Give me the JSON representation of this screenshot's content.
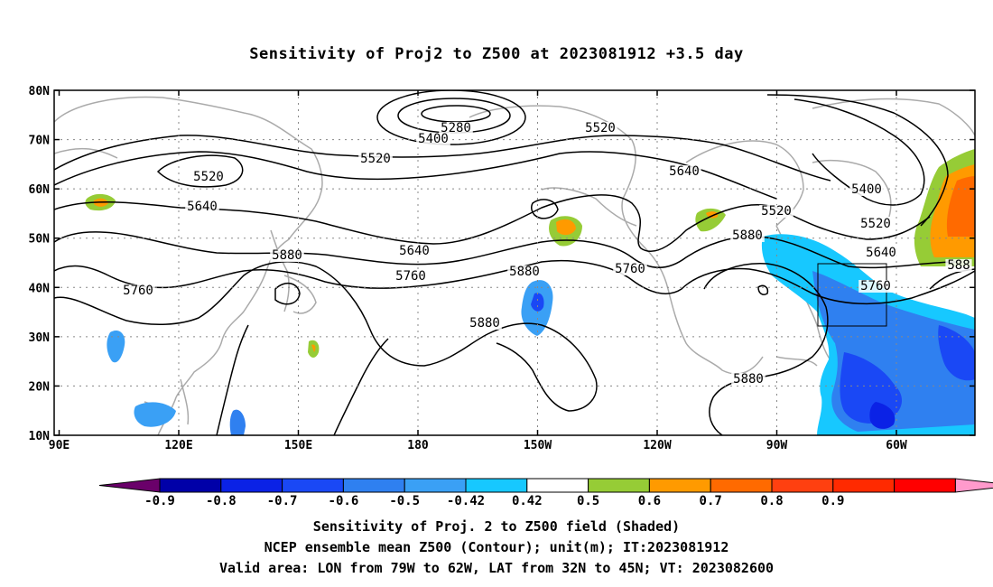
{
  "title": "Sensitivity of Proj2 to Z500 at 2023081912 +3.5 day",
  "lat_labels": [
    "80N",
    "70N",
    "60N",
    "50N",
    "40N",
    "30N",
    "20N",
    "10N"
  ],
  "lon_labels": [
    "90E",
    "120E",
    "150E",
    "180",
    "150W",
    "120W",
    "90W",
    "60W"
  ],
  "contour_labels": [
    {
      "text": "5280"
    },
    {
      "text": "5400"
    },
    {
      "text": "5520"
    },
    {
      "text": "5520"
    },
    {
      "text": "5520"
    },
    {
      "text": "5640"
    },
    {
      "text": "5640"
    },
    {
      "text": "5640"
    },
    {
      "text": "5760"
    },
    {
      "text": "5760"
    },
    {
      "text": "5760"
    },
    {
      "text": "5880"
    },
    {
      "text": "5880"
    },
    {
      "text": "5880"
    },
    {
      "text": "5880"
    },
    {
      "text": "5880"
    },
    {
      "text": "5400"
    },
    {
      "text": "5520"
    },
    {
      "text": "5640"
    },
    {
      "text": "588"
    },
    {
      "text": "5760"
    },
    {
      "text": "5520"
    }
  ],
  "colorbar": {
    "colors": [
      "#6a006a",
      "#0000a8",
      "#0b22e6",
      "#1a48f5",
      "#2f80f0",
      "#3aa0f5",
      "#17c8ff",
      "#ffffff",
      "#96cc36",
      "#ff9a00",
      "#ff6a00",
      "#ff4010",
      "#ff2a00",
      "#ff0000",
      "#ff9acc"
    ],
    "labels": [
      "-0.9",
      "-0.8",
      "-0.7",
      "-0.6",
      "-0.5",
      "-0.42",
      "0.42",
      "0.5",
      "0.6",
      "0.7",
      "0.8",
      "0.9"
    ]
  },
  "valid_box": {
    "lon_min": "79W",
    "lon_max": "62W",
    "lat_min": "32N",
    "lat_max": "45N"
  },
  "footer": {
    "line1": "Sensitivity of Proj. 2 to Z500 field (Shaded)",
    "line2": "NCEP ensemble mean Z500 (Contour); unit(m); IT:2023081912",
    "line3": "Valid area: LON from 79W to 62W, LAT from 32N to 45N; VT: 2023082600"
  }
}
